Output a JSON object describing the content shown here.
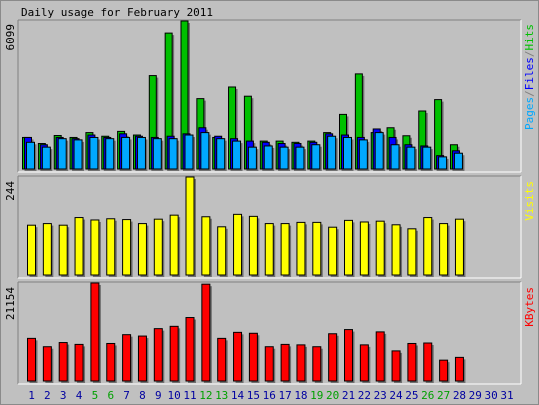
{
  "chart_data": {
    "type": "bar",
    "title": "Daily usage for February 2011",
    "days": [
      "1",
      "2",
      "3",
      "4",
      "5",
      "6",
      "7",
      "8",
      "9",
      "10",
      "11",
      "12",
      "13",
      "14",
      "15",
      "16",
      "17",
      "18",
      "19",
      "20",
      "21",
      "22",
      "23",
      "24",
      "25",
      "26",
      "27",
      "28",
      "29",
      "30",
      "31"
    ],
    "weekend_days": [
      "5",
      "6",
      "12",
      "13",
      "19",
      "20",
      "26",
      "27"
    ],
    "legends": {
      "panel1": [
        {
          "text": "Pages",
          "color": "#00a8ff"
        },
        {
          "text": "/",
          "color": "#808080"
        },
        {
          "text": "Files",
          "color": "#0000ff"
        },
        {
          "text": "/",
          "color": "#808080"
        },
        {
          "text": "Hits",
          "color": "#00c000"
        }
      ],
      "panel2": [
        {
          "text": "Visits",
          "color": "#ffff00"
        }
      ],
      "panel3": [
        {
          "text": "KBytes",
          "color": "#ff0000"
        }
      ]
    },
    "max_labels": {
      "panel1": "6099",
      "panel2": "244",
      "panel3": "21154"
    },
    "ylim": {
      "panel1": [
        0,
        6099
      ],
      "panel2": [
        0,
        244
      ],
      "panel3": [
        0,
        21154
      ]
    },
    "colors": {
      "hits": "#00c000",
      "files": "#0000ff",
      "pages": "#00a8ff",
      "visits": "#ffff00",
      "kbytes": "#ff0000",
      "weekend_label": "#00a000",
      "weekday_label": "#0000a0"
    },
    "series": [
      {
        "name": "Hits",
        "values": [
          1300,
          1050,
          1380,
          1300,
          1500,
          1350,
          1550,
          1400,
          3850,
          5600,
          6099,
          2900,
          1300,
          3380,
          3000,
          1150,
          1150,
          1100,
          1150,
          1500,
          2250,
          3920,
          1500,
          1700,
          1370,
          2390,
          2860,
          1000,
          0,
          0,
          0
        ]
      },
      {
        "name": "Files",
        "values": [
          1300,
          1000,
          1300,
          1250,
          1400,
          1300,
          1450,
          1350,
          1300,
          1350,
          1450,
          1700,
          1350,
          1250,
          1150,
          1100,
          1050,
          1050,
          1100,
          1450,
          1400,
          1300,
          1650,
          1300,
          1000,
          950,
          550,
          750,
          0,
          0,
          0
        ]
      },
      {
        "name": "Pages",
        "values": [
          1100,
          900,
          1250,
          1200,
          1300,
          1250,
          1300,
          1300,
          1250,
          1250,
          1400,
          1500,
          1250,
          1150,
          900,
          950,
          900,
          900,
          1000,
          1350,
          1300,
          1200,
          1500,
          1000,
          900,
          900,
          500,
          650,
          0,
          0,
          0
        ]
      },
      {
        "name": "Visits",
        "values": [
          124,
          128,
          124,
          143,
          137,
          140,
          138,
          128,
          139,
          149,
          244,
          145,
          120,
          151,
          146,
          128,
          128,
          131,
          131,
          119,
          136,
          132,
          134,
          125,
          115,
          143,
          128,
          139,
          0,
          0,
          0
        ]
      },
      {
        "name": "KBytes",
        "values": [
          9200,
          7400,
          8300,
          7900,
          21154,
          8100,
          10000,
          9700,
          11300,
          11800,
          13700,
          20900,
          9200,
          10500,
          10300,
          7400,
          7900,
          7800,
          7400,
          10200,
          11100,
          7800,
          10600,
          6500,
          8100,
          8200,
          4500,
          5100,
          0,
          0,
          0
        ]
      }
    ]
  }
}
